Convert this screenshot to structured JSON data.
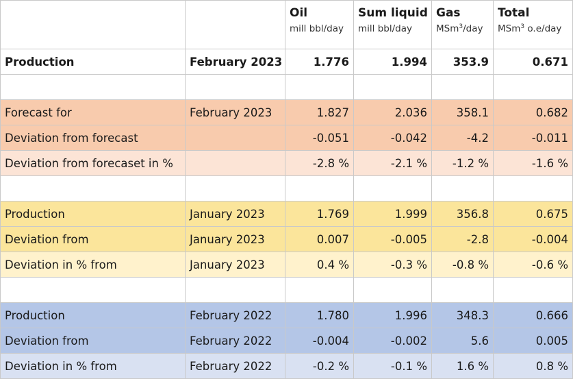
{
  "columns": [
    {
      "title": "Oil",
      "unit": "mill bbl/day"
    },
    {
      "title": "Sum liquid",
      "unit": "mill bbl/day"
    },
    {
      "title": "Gas",
      "unit": "MSm³/day"
    },
    {
      "title": "Total",
      "unit": "MSm³ o.e/day"
    }
  ],
  "rows": [
    {
      "kind": "bold",
      "label": "Production",
      "period": "February 2023",
      "values": [
        "1.776",
        "1.994",
        "353.9",
        "0.671"
      ]
    },
    {
      "kind": "blank"
    },
    {
      "kind": "orange",
      "label": "Forecast for",
      "period": "February 2023",
      "values": [
        "1.827",
        "2.036",
        "358.1",
        "0.682"
      ]
    },
    {
      "kind": "orange",
      "label": "Deviation from forecast",
      "period": "",
      "values": [
        "-0.051",
        "-0.042",
        "-4.2",
        "-0.011"
      ]
    },
    {
      "kind": "orange-light",
      "label": "Deviation from forecaset in %",
      "period": "",
      "values": [
        "-2.8 %",
        "-2.1 %",
        "-1.2 %",
        "-1.6 %"
      ]
    },
    {
      "kind": "blank"
    },
    {
      "kind": "yellow",
      "label": "Production",
      "period": "January 2023",
      "values": [
        "1.769",
        "1.999",
        "356.8",
        "0.675"
      ]
    },
    {
      "kind": "yellow",
      "label": "Deviation from",
      "period": "January 2023",
      "values": [
        "0.007",
        "-0.005",
        "-2.8",
        "-0.004"
      ]
    },
    {
      "kind": "yellow-light",
      "label": "Deviation in % from",
      "period": "January 2023",
      "values": [
        "0.4 %",
        "-0.3 %",
        "-0.8 %",
        "-0.6 %"
      ]
    },
    {
      "kind": "blank"
    },
    {
      "kind": "blue",
      "label": "Production",
      "period": "February 2022",
      "values": [
        "1.780",
        "1.996",
        "348.3",
        "0.666"
      ]
    },
    {
      "kind": "blue",
      "label": "Deviation from",
      "period": "February 2022",
      "values": [
        "-0.004",
        "-0.002",
        "5.6",
        "0.005"
      ]
    },
    {
      "kind": "blue-light",
      "label": "Deviation in % from",
      "period": "February 2022",
      "values": [
        "-0.2 %",
        "-0.1 %",
        "1.6 %",
        "0.8 %"
      ]
    }
  ],
  "colors": {
    "orange": "#f8cbad",
    "orange_light": "#fce4d6",
    "yellow": "#fbe59b",
    "yellow_light": "#fff2cc",
    "blue": "#b4c6e7",
    "blue_light": "#d9e1f2"
  }
}
